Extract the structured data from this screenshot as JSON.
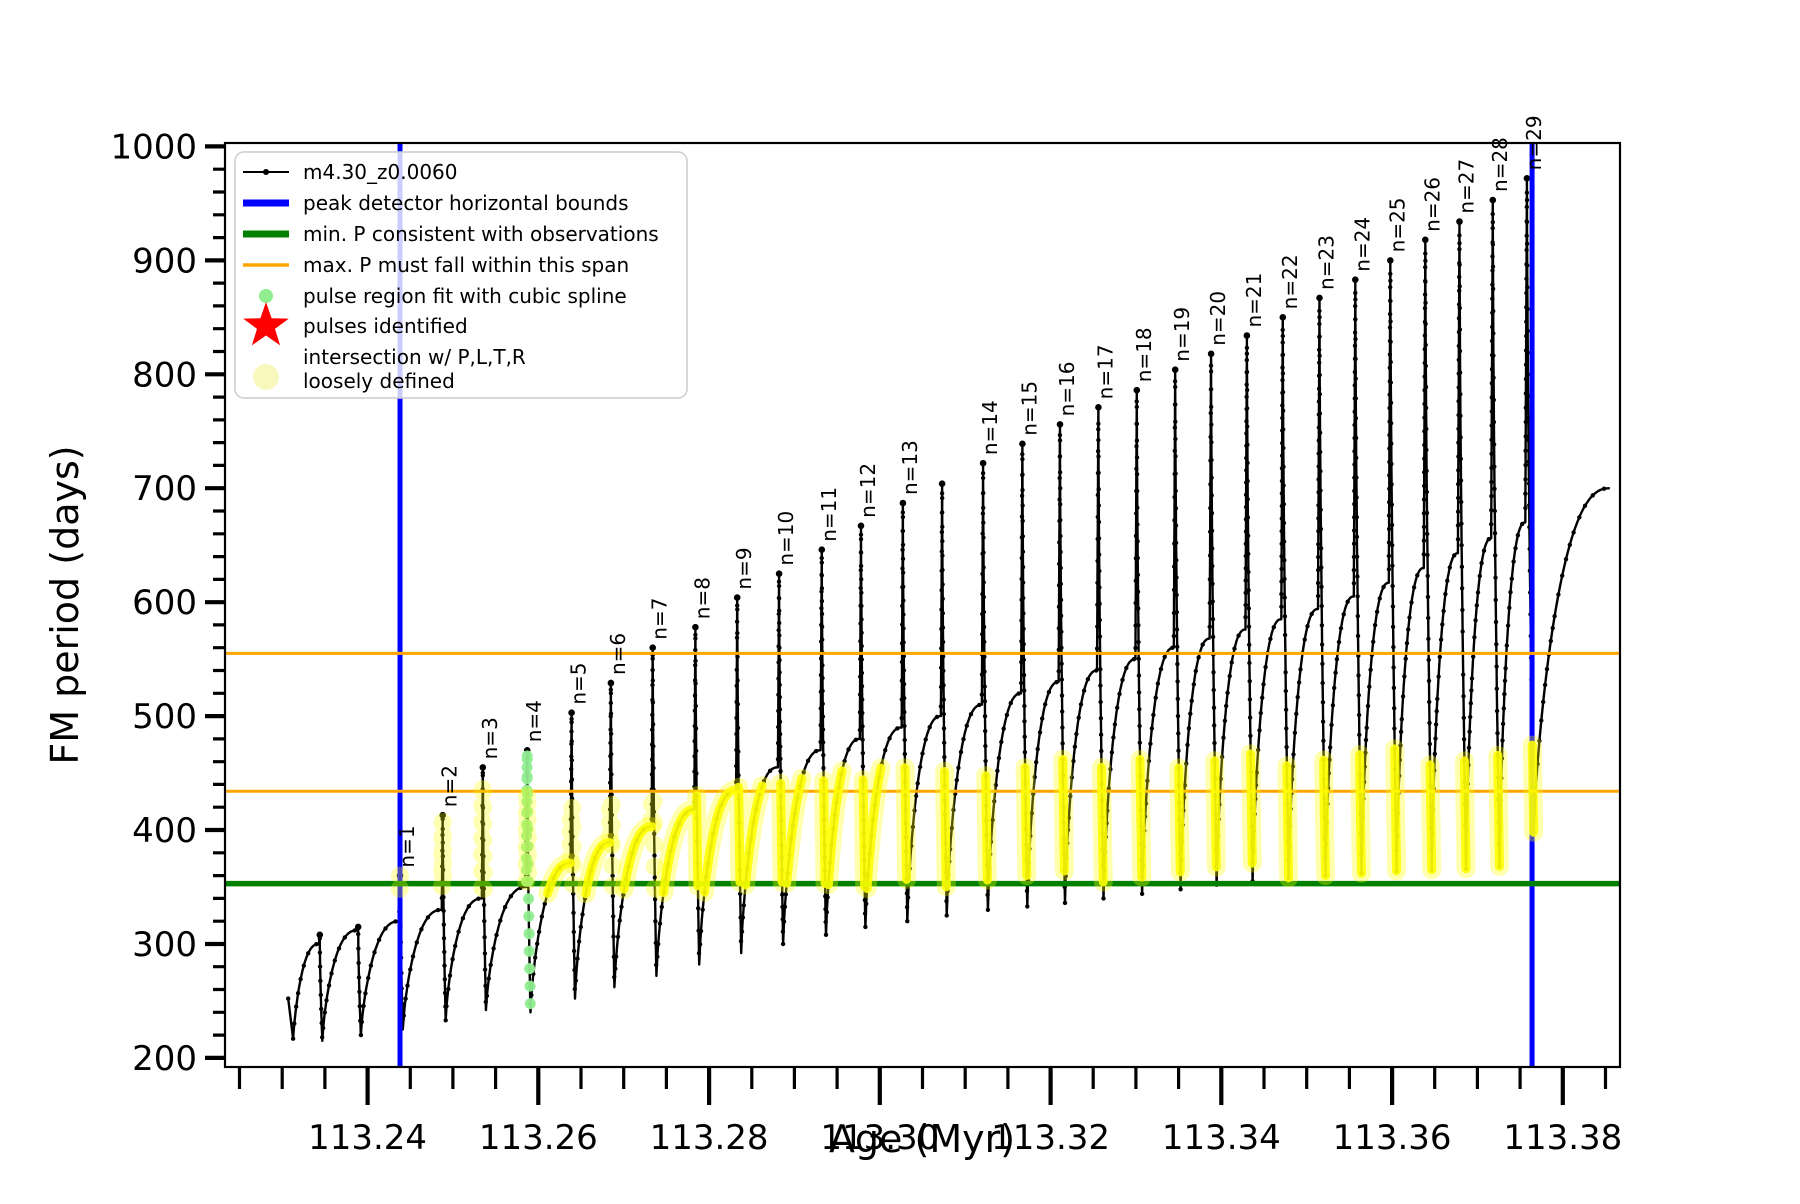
{
  "chart_data": {
    "type": "line",
    "title": "",
    "xlabel": "Age (Myr)",
    "ylabel": "FM period (days)",
    "xlim": [
      113.2233,
      113.3867
    ],
    "ylim": [
      192,
      1003
    ],
    "grid": false,
    "x_major_ticks": [
      113.24,
      113.26,
      113.28,
      113.3,
      113.32,
      113.34,
      113.36,
      113.38
    ],
    "x_major_tick_labels": [
      "113.24",
      "113.26",
      "113.28",
      "113.30",
      "113.32",
      "113.34",
      "113.36",
      "113.38"
    ],
    "x_minor_step": 0.005,
    "y_major_ticks": [
      200,
      300,
      400,
      500,
      600,
      700,
      800,
      900,
      1000
    ],
    "y_major_tick_labels": [
      "200",
      "300",
      "400",
      "500",
      "600",
      "700",
      "800",
      "900",
      "1000"
    ],
    "y_minor_step": 20,
    "series_name": "m4.30_z0.0060",
    "peak_detector_bounds_x": [
      113.2438,
      113.3764
    ],
    "min_P_observations_y": 353,
    "max_P_span_y": [
      434,
      555
    ],
    "curve_start": {
      "age": 113.2307,
      "value": 252,
      "first_dip": 206
    },
    "curve_end": {
      "age": 113.3855,
      "value": 700,
      "post_last_dip": 398
    },
    "pulses": [
      {
        "label": "",
        "age": 113.2344,
        "peak": 308,
        "arc": 300,
        "dip": 206,
        "ya": null,
        "ys": null,
        "style": "rings"
      },
      {
        "label": "",
        "age": 113.2389,
        "peak": 315,
        "arc": 312,
        "dip": 215,
        "ya": null,
        "ys": null,
        "style": "rings"
      },
      {
        "label": "n=1",
        "age": 113.2438,
        "peak": 360,
        "arc": 320,
        "dip": 220,
        "ya": null,
        "ys": [
          348,
          362
        ],
        "style": "rings"
      },
      {
        "label": "n=2",
        "age": 113.2488,
        "peak": 413,
        "arc": 330,
        "dip": 225,
        "ya": null,
        "ys": [
          348,
          413
        ],
        "style": "rings"
      },
      {
        "label": "n=3",
        "age": 113.2535,
        "peak": 455,
        "arc": 340,
        "dip": 233,
        "ya": null,
        "ys": [
          348,
          440
        ],
        "style": "rings"
      },
      {
        "label": "n=4",
        "age": 113.2587,
        "peak": 470,
        "arc": 350,
        "dip": 242,
        "ya": null,
        "ys": [
          350,
          430
        ],
        "style": "rings",
        "spline_fit_range": [
          232,
          470
        ]
      },
      {
        "label": "n=5",
        "age": 113.2639,
        "peak": 503,
        "arc": 371,
        "dip": 240,
        "ya": [
          344,
          371
        ],
        "ys": [
          348,
          420
        ],
        "style": "rings"
      },
      {
        "label": "n=6",
        "age": 113.2685,
        "peak": 529,
        "arc": 389,
        "dip": 252,
        "ya": [
          344,
          389
        ],
        "ys": [
          348,
          425
        ],
        "style": "rings"
      },
      {
        "label": "n=7",
        "age": 113.2734,
        "peak": 560,
        "arc": 403,
        "dip": 262,
        "ya": [
          344,
          403
        ],
        "ys": [
          348,
          430
        ],
        "style": "rings"
      },
      {
        "label": "n=8",
        "age": 113.2784,
        "peak": 578,
        "arc": 418,
        "dip": 272,
        "ya": [
          344,
          418
        ],
        "ys": [
          348,
          435
        ],
        "style": "band"
      },
      {
        "label": "n=9",
        "age": 113.2833,
        "peak": 604,
        "arc": 435,
        "dip": 282,
        "ya": [
          344,
          435
        ],
        "ys": [
          348,
          440
        ],
        "style": "band"
      },
      {
        "label": "n=10",
        "age": 113.2882,
        "peak": 625,
        "arc": 455,
        "dip": 292,
        "ya": [
          344,
          440
        ],
        "ys": [
          346,
          445
        ],
        "style": "band"
      },
      {
        "label": "n=11",
        "age": 113.2932,
        "peak": 646,
        "arc": 470,
        "dip": 300,
        "ya": [
          344,
          448
        ],
        "ys": [
          346,
          450
        ],
        "style": "band"
      },
      {
        "label": "n=12",
        "age": 113.2978,
        "peak": 667,
        "arc": 480,
        "dip": 308,
        "ya": [
          345,
          452
        ],
        "ys": [
          347,
          452
        ],
        "style": "band"
      },
      {
        "label": "n=13",
        "age": 113.3027,
        "peak": 687,
        "arc": 490,
        "dip": 315,
        "ya": [
          346,
          455
        ],
        "ys": [
          348,
          455
        ],
        "style": "band"
      },
      {
        "label": "",
        "age": 113.3073,
        "peak": 704,
        "arc": 500,
        "dip": 320,
        "ya": null,
        "ys": [
          350,
          458
        ],
        "style": "band"
      },
      {
        "label": "n=14",
        "age": 113.3121,
        "peak": 722,
        "arc": 510,
        "dip": 325,
        "ya": null,
        "ys": [
          350,
          460
        ],
        "style": "band"
      },
      {
        "label": "n=15",
        "age": 113.3167,
        "peak": 739,
        "arc": 520,
        "dip": 330,
        "ya": null,
        "ys": [
          350,
          460
        ],
        "style": "band"
      },
      {
        "label": "n=16",
        "age": 113.3211,
        "peak": 756,
        "arc": 530,
        "dip": 333,
        "ya": null,
        "ys": [
          352,
          462
        ],
        "style": "band"
      },
      {
        "label": "n=17",
        "age": 113.3256,
        "peak": 771,
        "arc": 540,
        "dip": 336,
        "ya": null,
        "ys": [
          352,
          462
        ],
        "style": "band"
      },
      {
        "label": "n=18",
        "age": 113.3301,
        "peak": 786,
        "arc": 550,
        "dip": 340,
        "ya": null,
        "ys": [
          354,
          464
        ],
        "style": "band"
      },
      {
        "label": "n=19",
        "age": 113.3346,
        "peak": 804,
        "arc": 560,
        "dip": 344,
        "ya": null,
        "ys": [
          354,
          465
        ],
        "style": "band"
      },
      {
        "label": "n=20",
        "age": 113.3388,
        "peak": 818,
        "arc": 568,
        "dip": 348,
        "ya": null,
        "ys": [
          355,
          466
        ],
        "style": "band"
      },
      {
        "label": "n=21",
        "age": 113.343,
        "peak": 834,
        "arc": 576,
        "dip": 352,
        "ya": null,
        "ys": [
          356,
          468
        ],
        "style": "band"
      },
      {
        "label": "n=22",
        "age": 113.3472,
        "peak": 850,
        "arc": 585,
        "dip": 355,
        "ya": null,
        "ys": [
          357,
          469
        ],
        "style": "band"
      },
      {
        "label": "n=23",
        "age": 113.3515,
        "peak": 867,
        "arc": 594,
        "dip": 358,
        "ya": null,
        "ys": [
          358,
          470
        ],
        "style": "band"
      },
      {
        "label": "n=24",
        "age": 113.3557,
        "peak": 883,
        "arc": 605,
        "dip": 360,
        "ya": null,
        "ys": [
          360,
          472
        ],
        "style": "band"
      },
      {
        "label": "n=25",
        "age": 113.3598,
        "peak": 900,
        "arc": 617,
        "dip": 362,
        "ya": null,
        "ys": [
          361,
          473
        ],
        "style": "band"
      },
      {
        "label": "n=26",
        "age": 113.3639,
        "peak": 918,
        "arc": 630,
        "dip": 364,
        "ya": null,
        "ys": [
          362,
          474
        ],
        "style": "band"
      },
      {
        "label": "n=27",
        "age": 113.3679,
        "peak": 934,
        "arc": 643,
        "dip": 365,
        "ya": null,
        "ys": [
          363,
          475
        ],
        "style": "band"
      },
      {
        "label": "n=28",
        "age": 113.3718,
        "peak": 953,
        "arc": 656,
        "dip": 366,
        "ya": null,
        "ys": [
          364,
          477
        ],
        "style": "band"
      },
      {
        "label": "n=29",
        "age": 113.3758,
        "peak": 972,
        "arc": 670,
        "dip": 368,
        "ya": null,
        "ys": [
          396,
          482
        ],
        "style": "band"
      }
    ],
    "colors": {
      "series": "#000000",
      "peak_bounds": "#0000ff",
      "min_P": "#008000",
      "max_P": "#ffa500",
      "spline_dots": "#90ee90",
      "pulse_star": "#ff0000",
      "intersection": "#ffff00",
      "legend_intersection_swatch": "#f5f5a8"
    },
    "legend": {
      "position": "upper left",
      "items": [
        {
          "label": "m4.30_z0.0060",
          "type": "line-dot",
          "color": "#000000"
        },
        {
          "label": "peak detector horizontal bounds",
          "type": "thick-line",
          "color": "#0000ff"
        },
        {
          "label": "min. P consistent with observations",
          "type": "thick-line",
          "color": "#008000"
        },
        {
          "label": "max. P must fall within this span",
          "type": "line",
          "color": "#ffa500"
        },
        {
          "label": "pulse region fit with cubic spline",
          "type": "dot",
          "color": "#90ee90"
        },
        {
          "label": "pulses identified",
          "type": "star",
          "color": "#ff0000"
        },
        {
          "label": "intersection w/ P,L,T,R",
          "label2": "loosely defined",
          "type": "big-dot",
          "color": "#f5f5a8"
        }
      ]
    }
  }
}
